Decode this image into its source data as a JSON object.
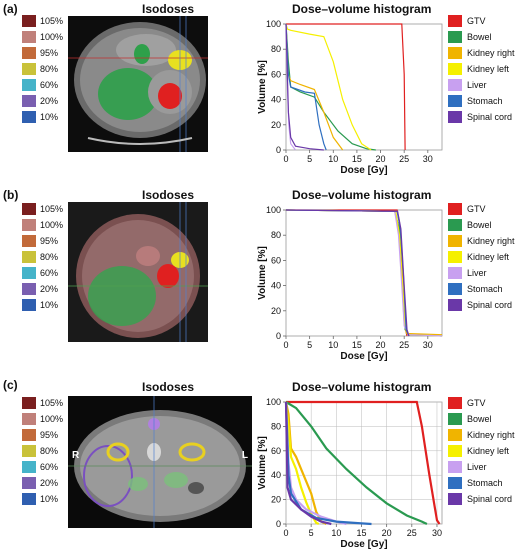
{
  "panels": [
    {
      "label": "(a)",
      "iso_title": "Isodoses",
      "dvh_title": "Dose–volume histogram"
    },
    {
      "label": "(b)",
      "iso_title": "Isodoses",
      "dvh_title": "Dose–volume histogram"
    },
    {
      "label": "(c)",
      "iso_title": "Isodoses",
      "dvh_title": "Dose–volume histogram",
      "ct_marks": {
        "right": "R",
        "left": "L"
      }
    }
  ],
  "isodose_legend": [
    {
      "label": "105%",
      "color": "#7a1f1f"
    },
    {
      "label": "100%",
      "color": "#c0807a"
    },
    {
      "label": "95%",
      "color": "#c26a3a"
    },
    {
      "label": "80%",
      "color": "#c9c23a"
    },
    {
      "label": "60%",
      "color": "#45b3c9"
    },
    {
      "label": "20%",
      "color": "#7a5fb0"
    },
    {
      "label": "10%",
      "color": "#2f5fb0"
    }
  ],
  "structure_legend": [
    {
      "label": "GTV",
      "color": "#e02020"
    },
    {
      "label": "Bowel",
      "color": "#2a9a50"
    },
    {
      "label": "Kidney right",
      "color": "#f0b400"
    },
    {
      "label": "Kidney left",
      "color": "#f5f000"
    },
    {
      "label": "Liver",
      "color": "#c8a0f0"
    },
    {
      "label": "Stomach",
      "color": "#2f6fc0"
    },
    {
      "label": "Spinal cord",
      "color": "#6a38a8"
    }
  ],
  "chart_data": [
    {
      "type": "line",
      "xlabel": "Dose [Gy]",
      "ylabel": "Volume [%]",
      "xlim": [
        0,
        33
      ],
      "ylim": [
        0,
        100
      ],
      "xticks": [
        0,
        5,
        10,
        15,
        20,
        25,
        30
      ],
      "yticks": [
        0,
        20,
        40,
        60,
        80,
        100
      ],
      "grid": false,
      "series": [
        {
          "name": "GTV",
          "color": "#e02020",
          "points": [
            [
              0,
              100
            ],
            [
              24.5,
              100
            ],
            [
              25,
              60
            ],
            [
              25.2,
              0
            ]
          ]
        },
        {
          "name": "Bowel",
          "color": "#2a9a50",
          "points": [
            [
              0,
              100
            ],
            [
              0.5,
              70
            ],
            [
              1,
              50
            ],
            [
              3,
              46
            ],
            [
              6,
              42
            ],
            [
              8,
              30
            ],
            [
              11,
              15
            ],
            [
              14,
              5
            ],
            [
              17,
              1
            ],
            [
              19,
              0
            ]
          ]
        },
        {
          "name": "Kidney right",
          "color": "#f0b400",
          "points": [
            [
              0,
              100
            ],
            [
              0.5,
              60
            ],
            [
              1,
              55
            ],
            [
              3,
              52
            ],
            [
              6,
              48
            ],
            [
              8,
              30
            ],
            [
              10,
              10
            ],
            [
              12,
              0
            ]
          ]
        },
        {
          "name": "Kidney left",
          "color": "#f5f000",
          "points": [
            [
              0,
              100
            ],
            [
              0.3,
              96
            ],
            [
              1,
              95
            ],
            [
              5,
              92
            ],
            [
              8,
              90
            ],
            [
              10,
              70
            ],
            [
              12,
              40
            ],
            [
              14,
              20
            ],
            [
              16,
              5
            ],
            [
              18,
              0
            ]
          ]
        },
        {
          "name": "Liver",
          "color": "#c8a0f0",
          "points": [
            [
              0,
              100
            ],
            [
              0.3,
              50
            ],
            [
              0.6,
              20
            ],
            [
              1,
              5
            ],
            [
              2,
              0
            ]
          ]
        },
        {
          "name": "Stomach",
          "color": "#2f6fc0",
          "points": [
            [
              0,
              100
            ],
            [
              0.5,
              60
            ],
            [
              1,
              50
            ],
            [
              4,
              46
            ],
            [
              6,
              45
            ],
            [
              7,
              20
            ],
            [
              8,
              5
            ],
            [
              8.5,
              0
            ]
          ]
        },
        {
          "name": "Spinal cord",
          "color": "#6a38a8",
          "points": [
            [
              0,
              100
            ],
            [
              0.5,
              30
            ],
            [
              1,
              10
            ],
            [
              2,
              3
            ],
            [
              5,
              1
            ],
            [
              8,
              0
            ]
          ]
        }
      ]
    },
    {
      "type": "line",
      "xlabel": "Dose [Gy]",
      "ylabel": "Volume [%]",
      "xlim": [
        0,
        33
      ],
      "ylim": [
        0,
        100
      ],
      "xticks": [
        0,
        5,
        10,
        15,
        20,
        25,
        30
      ],
      "yticks": [
        0,
        20,
        40,
        60,
        80,
        100
      ],
      "grid": false,
      "series": [
        {
          "name": "GTV",
          "color": "#e02020",
          "points": [
            [
              0,
              100
            ],
            [
              23.5,
              100
            ],
            [
              24,
              90
            ],
            [
              24.8,
              40
            ],
            [
              25.3,
              5
            ],
            [
              25.6,
              0
            ]
          ]
        },
        {
          "name": "Bowel",
          "color": "#2a9a50",
          "points": [
            [
              0,
              100
            ],
            [
              23,
              99
            ],
            [
              24,
              85
            ],
            [
              24.6,
              40
            ],
            [
              25.2,
              5
            ],
            [
              26,
              1
            ],
            [
              33,
              0
            ]
          ]
        },
        {
          "name": "Kidney right",
          "color": "#f0b400",
          "points": [
            [
              0,
              100
            ],
            [
              23,
              99
            ],
            [
              23.8,
              85
            ],
            [
              24.5,
              45
            ],
            [
              25,
              10
            ],
            [
              25.5,
              2
            ],
            [
              33,
              1
            ]
          ]
        },
        {
          "name": "Kidney left",
          "color": "#f5f000",
          "points": [
            [
              0,
              100
            ],
            [
              23.2,
              99
            ],
            [
              24,
              80
            ],
            [
              24.7,
              40
            ],
            [
              25.2,
              8
            ],
            [
              26,
              1
            ],
            [
              33,
              0
            ]
          ]
        },
        {
          "name": "Liver",
          "color": "#c8a0f0",
          "points": [
            [
              0,
              100
            ],
            [
              23,
              99
            ],
            [
              23.8,
              80
            ],
            [
              24.5,
              40
            ],
            [
              25,
              8
            ],
            [
              26,
              1
            ],
            [
              33,
              0
            ]
          ]
        },
        {
          "name": "Stomach",
          "color": "#2f6fc0",
          "points": [
            [
              0,
              100
            ],
            [
              23.5,
              99
            ],
            [
              24.2,
              85
            ],
            [
              24.9,
              45
            ],
            [
              25.4,
              5
            ],
            [
              26,
              0
            ]
          ]
        },
        {
          "name": "Spinal cord",
          "color": "#6a38a8",
          "points": [
            [
              0,
              100
            ],
            [
              23.6,
              99
            ],
            [
              24.3,
              85
            ],
            [
              25,
              40
            ],
            [
              25.6,
              5
            ],
            [
              26,
              0
            ]
          ]
        }
      ]
    },
    {
      "type": "line",
      "xlabel": "Dose [Gy]",
      "ylabel": "Volume [%]",
      "xlim": [
        0,
        31
      ],
      "ylim": [
        0,
        100
      ],
      "xticks": [
        0,
        5,
        10,
        15,
        20,
        25,
        30
      ],
      "yticks": [
        0,
        20,
        40,
        60,
        80,
        100
      ],
      "grid": true,
      "series": [
        {
          "name": "GTV",
          "color": "#e02020",
          "points": [
            [
              0,
              100
            ],
            [
              26,
              100
            ],
            [
              27,
              80
            ],
            [
              28.5,
              40
            ],
            [
              29.5,
              15
            ],
            [
              30,
              3
            ],
            [
              30.5,
              0
            ]
          ]
        },
        {
          "name": "Bowel",
          "color": "#2a9a50",
          "points": [
            [
              0,
              100
            ],
            [
              2,
              95
            ],
            [
              5,
              80
            ],
            [
              8,
              62
            ],
            [
              12,
              45
            ],
            [
              16,
              30
            ],
            [
              20,
              17
            ],
            [
              24,
              7
            ],
            [
              27,
              2
            ],
            [
              28,
              0
            ]
          ]
        },
        {
          "name": "Kidney right",
          "color": "#f0b400",
          "points": [
            [
              0,
              100
            ],
            [
              0.5,
              90
            ],
            [
              1,
              62
            ],
            [
              2,
              55
            ],
            [
              3,
              45
            ],
            [
              5,
              25
            ],
            [
              6,
              10
            ],
            [
              7,
              2
            ],
            [
              8,
              0
            ]
          ]
        },
        {
          "name": "Kidney left",
          "color": "#f5f000",
          "points": [
            [
              0,
              100
            ],
            [
              0.5,
              80
            ],
            [
              1,
              55
            ],
            [
              2,
              45
            ],
            [
              3,
              30
            ],
            [
              4,
              18
            ],
            [
              5,
              8
            ],
            [
              6,
              1
            ],
            [
              6.5,
              0
            ]
          ]
        },
        {
          "name": "Liver",
          "color": "#c8a0f0",
          "points": [
            [
              0,
              100
            ],
            [
              0.5,
              50
            ],
            [
              1,
              30
            ],
            [
              2,
              20
            ],
            [
              4,
              12
            ],
            [
              7,
              6
            ],
            [
              10,
              2
            ],
            [
              12,
              0
            ]
          ]
        },
        {
          "name": "Stomach",
          "color": "#2f6fc0",
          "points": [
            [
              0,
              100
            ],
            [
              0.5,
              40
            ],
            [
              1,
              25
            ],
            [
              3,
              12
            ],
            [
              6,
              5
            ],
            [
              10,
              2
            ],
            [
              15,
              0.5
            ],
            [
              17,
              0
            ]
          ]
        },
        {
          "name": "Spinal cord",
          "color": "#6a38a8",
          "points": [
            [
              0,
              100
            ],
            [
              0.3,
              30
            ],
            [
              1,
              20
            ],
            [
              3,
              12
            ],
            [
              5,
              6
            ],
            [
              7,
              2
            ],
            [
              9,
              0
            ]
          ]
        }
      ]
    }
  ]
}
